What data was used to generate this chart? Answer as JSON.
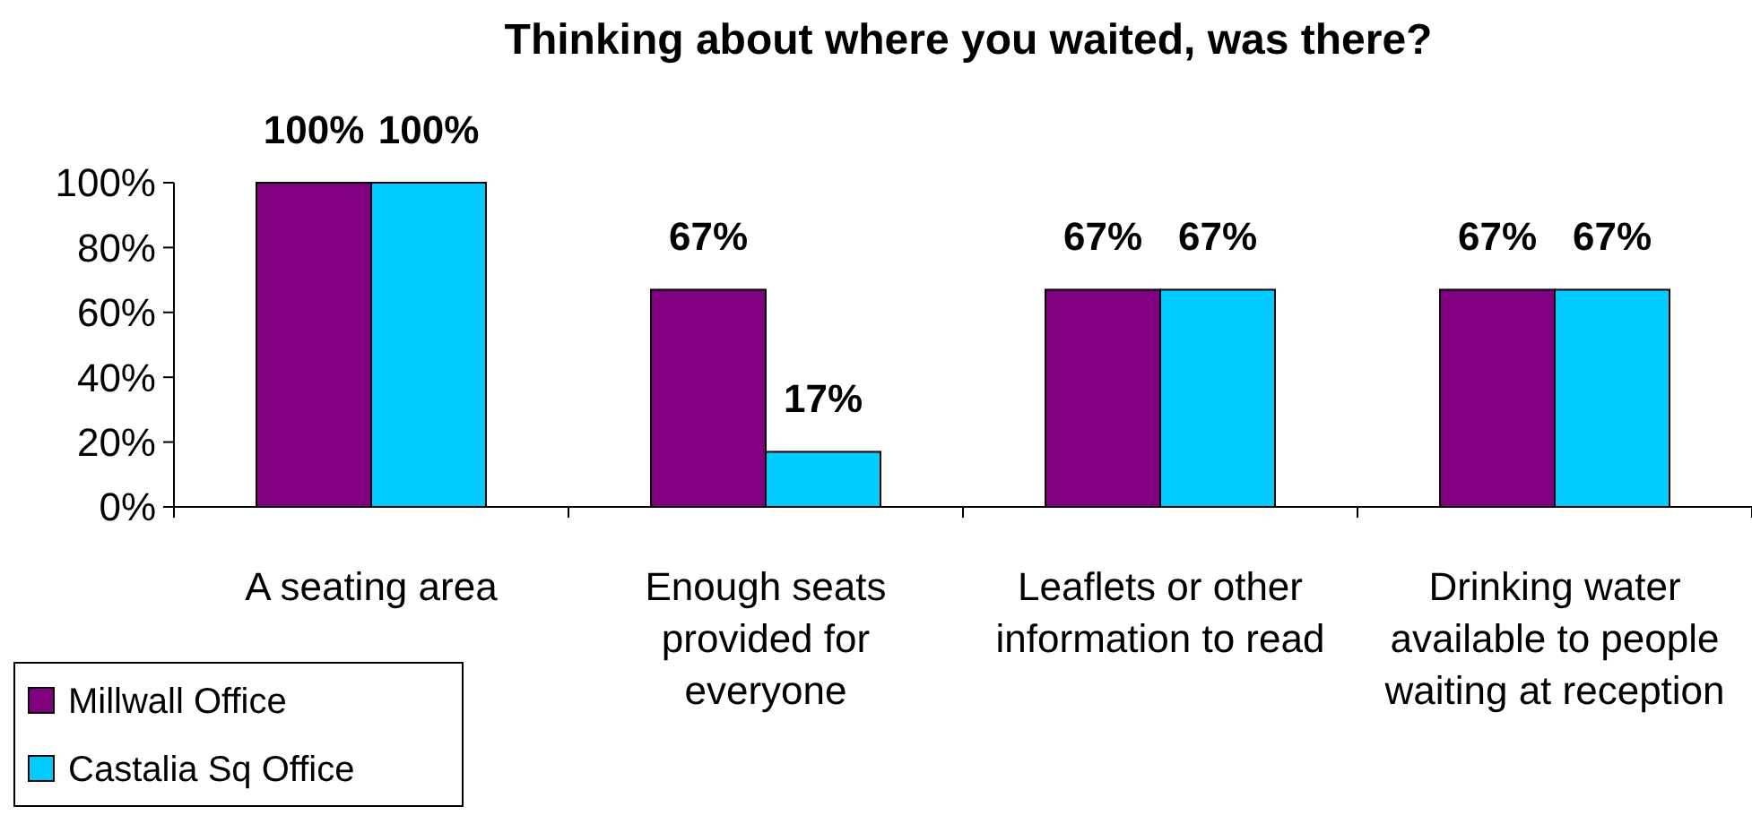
{
  "chart_data": {
    "type": "bar",
    "title": "Thinking about where you waited, was there?",
    "categories": [
      "A seating area",
      "Enough seats provided for everyone",
      "Leaflets or other information to read",
      "Drinking water available to people waiting at reception"
    ],
    "series": [
      {
        "name": "Millwall Office",
        "color": "#800080",
        "values": [
          100,
          67,
          67,
          67
        ],
        "value_labels": [
          "100%",
          "67%",
          "67%",
          "67%"
        ]
      },
      {
        "name": "Castalia Sq Office",
        "color": "#00ccff",
        "values": [
          100,
          17,
          67,
          67
        ],
        "value_labels": [
          "100%",
          "17%",
          "67%",
          "67%"
        ]
      }
    ],
    "ylim": [
      0,
      100
    ],
    "yticks": [
      {
        "value": 0,
        "label": "0%"
      },
      {
        "value": 20,
        "label": "20%"
      },
      {
        "value": 40,
        "label": "40%"
      },
      {
        "value": 60,
        "label": "60%"
      },
      {
        "value": 80,
        "label": "80%"
      },
      {
        "value": 100,
        "label": "100%"
      }
    ],
    "grid": false,
    "legend": "bottom left"
  }
}
